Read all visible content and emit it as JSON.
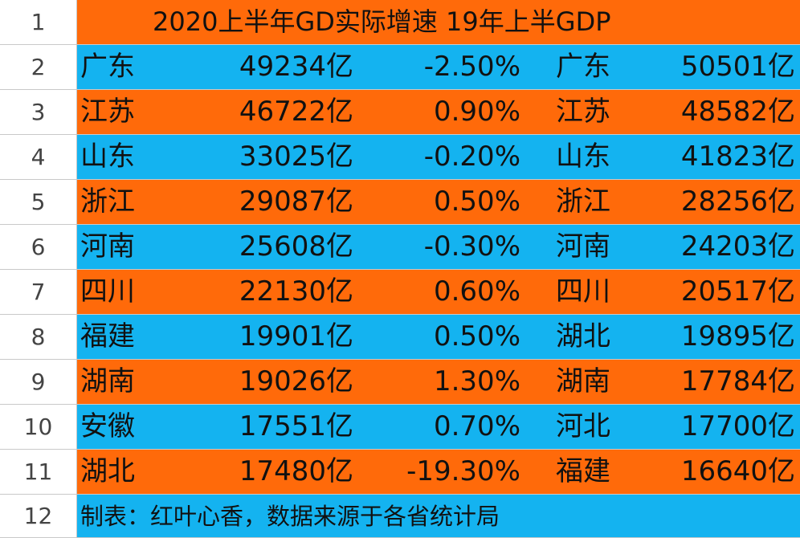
{
  "sheet": {
    "colors": {
      "orange": "#FF6A0A",
      "blue": "#14B3F0"
    },
    "title_row": {
      "num": "1",
      "text": "2020上半年GD实际增速  19年上半GDP"
    },
    "rows": [
      {
        "num": "2",
        "prov2020": "广东",
        "gdp2020": "49234亿",
        "growth": "-2.50%",
        "prov2019": "广东",
        "gdp2019": "50501亿"
      },
      {
        "num": "3",
        "prov2020": "江苏",
        "gdp2020": "46722亿",
        "growth": "0.90%",
        "prov2019": "江苏",
        "gdp2019": "48582亿"
      },
      {
        "num": "4",
        "prov2020": "山东",
        "gdp2020": "33025亿",
        "growth": "-0.20%",
        "prov2019": "山东",
        "gdp2019": "41823亿"
      },
      {
        "num": "5",
        "prov2020": "浙江",
        "gdp2020": "29087亿",
        "growth": "0.50%",
        "prov2019": "浙江",
        "gdp2019": "28256亿"
      },
      {
        "num": "6",
        "prov2020": "河南",
        "gdp2020": "25608亿",
        "growth": "-0.30%",
        "prov2019": "河南",
        "gdp2019": "24203亿"
      },
      {
        "num": "7",
        "prov2020": "四川",
        "gdp2020": "22130亿",
        "growth": "0.60%",
        "prov2019": "四川",
        "gdp2019": "20517亿"
      },
      {
        "num": "8",
        "prov2020": "福建",
        "gdp2020": "19901亿",
        "growth": "0.50%",
        "prov2019": "湖北",
        "gdp2019": "19895亿"
      },
      {
        "num": "9",
        "prov2020": "湖南",
        "gdp2020": "19026亿",
        "growth": "1.30%",
        "prov2019": "湖南",
        "gdp2019": "17784亿"
      },
      {
        "num": "10",
        "prov2020": "安徽",
        "gdp2020": "17551亿",
        "growth": "0.70%",
        "prov2019": "河北",
        "gdp2019": "17700亿"
      },
      {
        "num": "11",
        "prov2020": "湖北",
        "gdp2020": "17480亿",
        "growth": "-19.30%",
        "prov2019": "福建",
        "gdp2019": "16640亿"
      }
    ],
    "footer_row": {
      "num": "12",
      "text": "制表：红叶心香，数据来源于各省统计局"
    }
  }
}
